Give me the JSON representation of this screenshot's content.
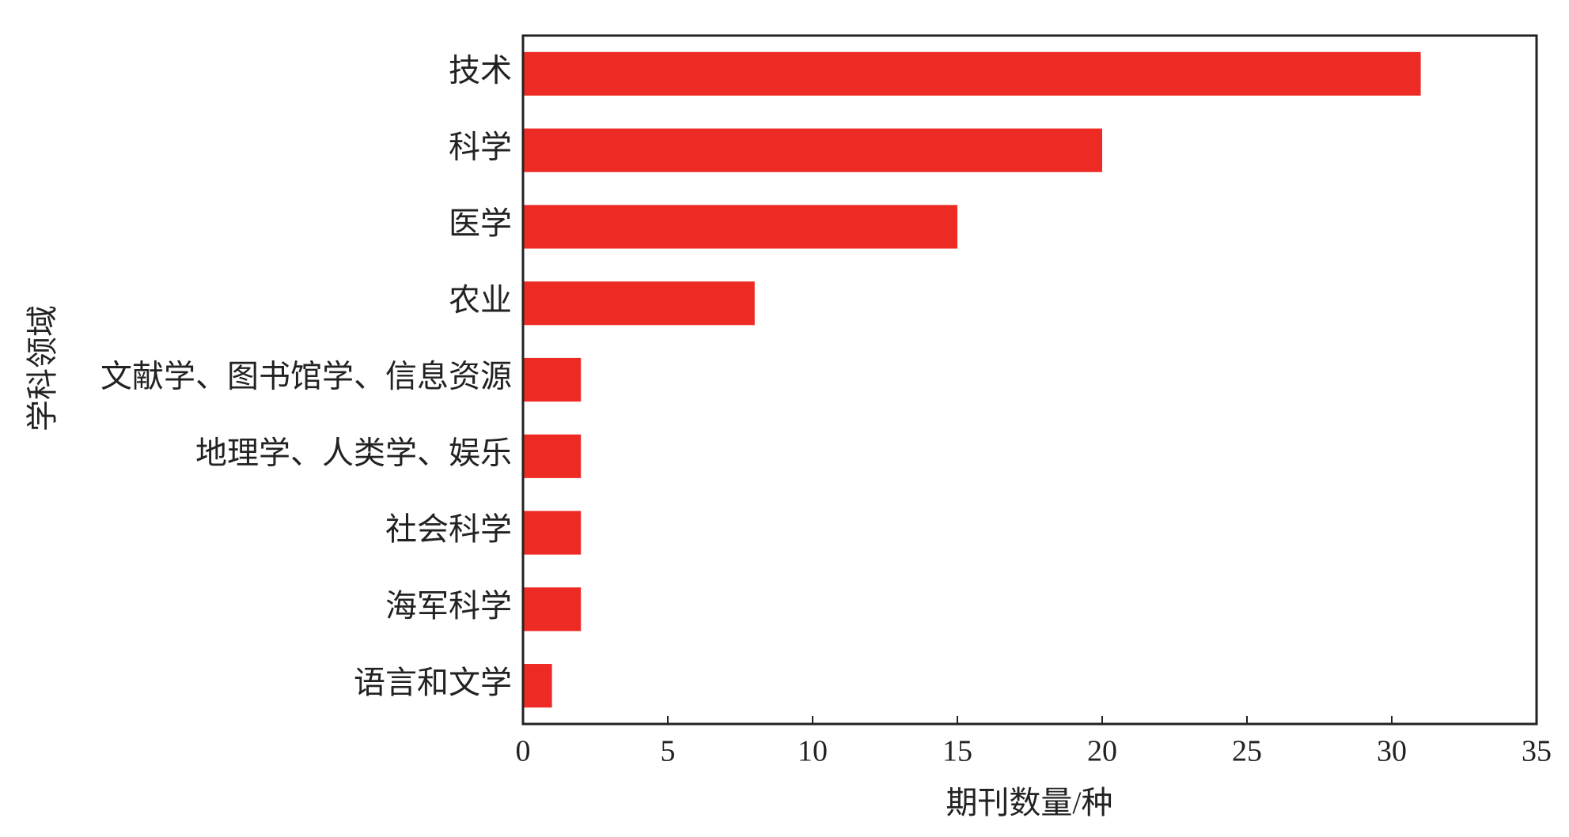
{
  "chart_data": {
    "type": "bar",
    "orientation": "horizontal",
    "categories": [
      "技术",
      "科学",
      "医学",
      "农业",
      "文献学、图书馆学、信息资源",
      "地理学、人类学、娱乐",
      "社会科学",
      "海军科学",
      "语言和文学"
    ],
    "values": [
      31,
      20,
      15,
      8,
      2,
      2,
      2,
      2,
      1
    ],
    "color": "#ee2a24",
    "xlabel": "期刊数量/种",
    "ylabel": "学科领域",
    "xlim": [
      0,
      35
    ],
    "xticks": [
      0,
      5,
      10,
      15,
      20,
      25,
      30,
      35
    ]
  }
}
